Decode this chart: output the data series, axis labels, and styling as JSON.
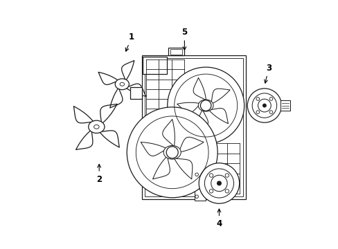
{
  "bg_color": "#ffffff",
  "line_color": "#1a1a1a",
  "lw": 0.9,
  "fig_width": 4.89,
  "fig_height": 3.6,
  "dpi": 100
}
